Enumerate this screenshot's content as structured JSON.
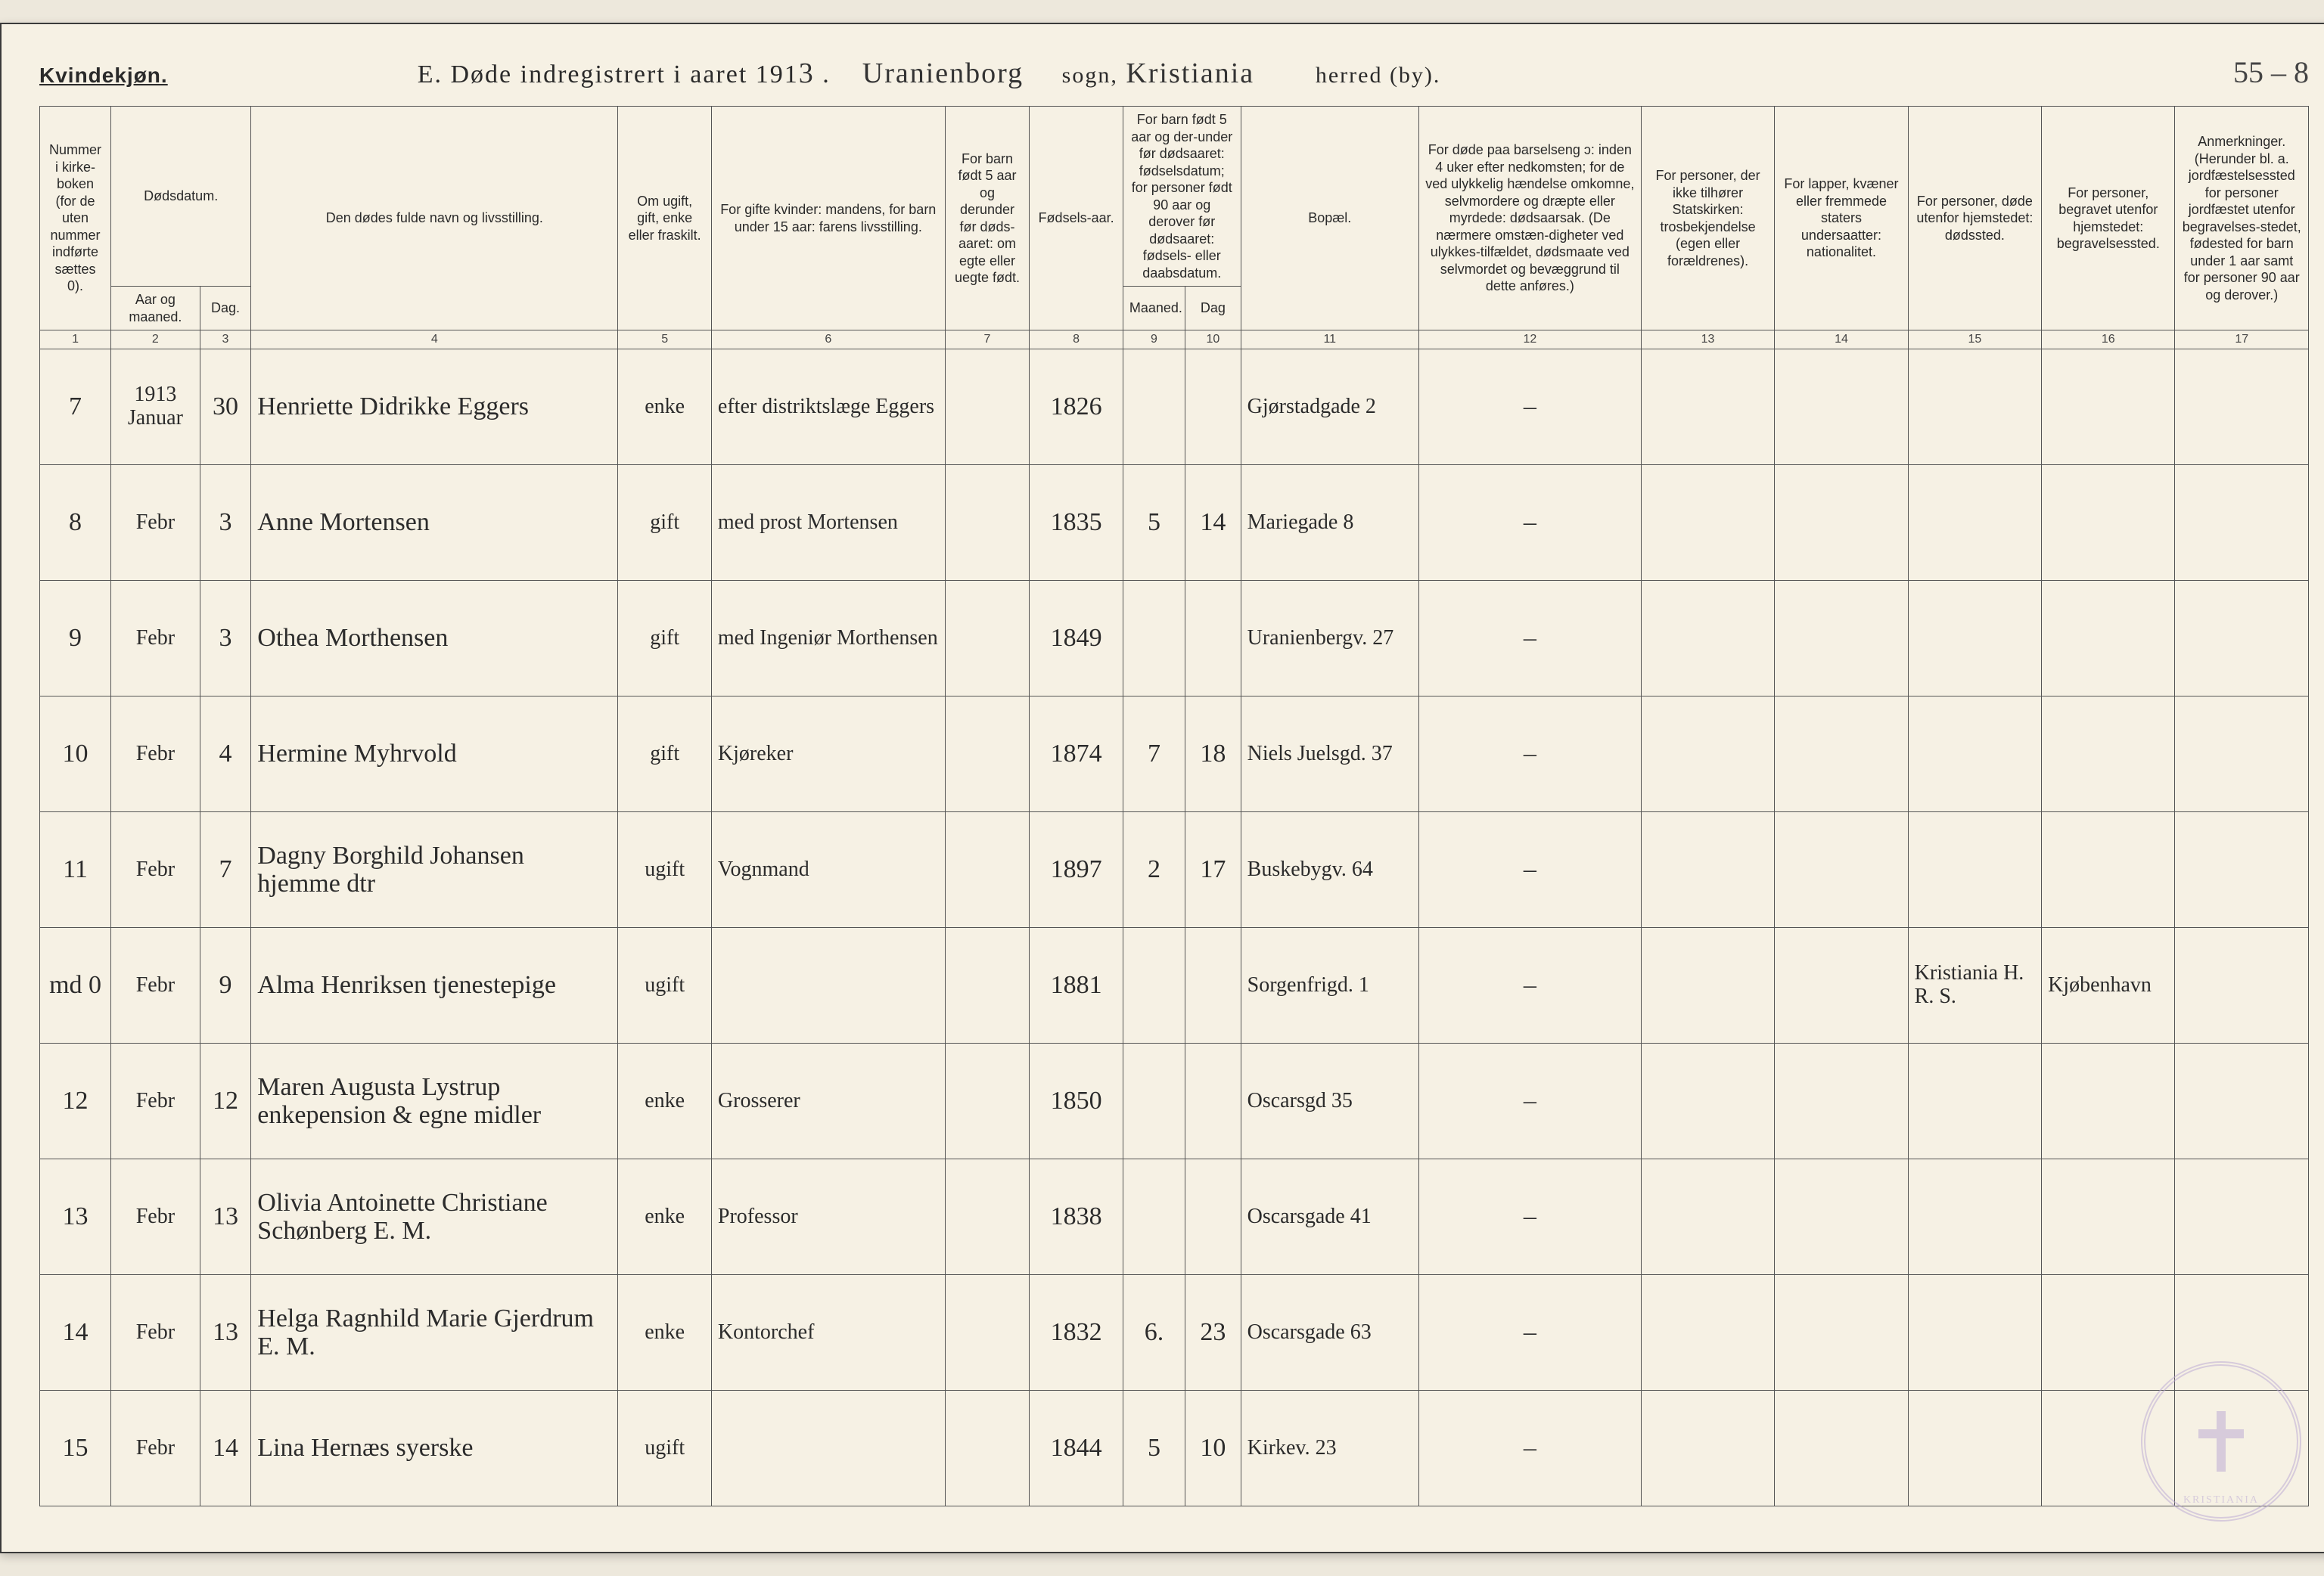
{
  "header": {
    "gender_label": "Kvindekjøn.",
    "title_prefix": "E.  Døde indregistrert i aaret 191",
    "year_suffix": "3",
    "sogn_script": "Uranienborg",
    "sogn_label": "sogn,",
    "herred_script": "Kristiania",
    "herred_label": "herred (by).",
    "page_number": "55 – 8"
  },
  "columns": {
    "c1": "Nummer i kirke-boken (for de uten nummer indførte sættes 0).",
    "c2a": "Dødsdatum.",
    "c2_aar": "Aar og maaned.",
    "c2_dag": "Dag.",
    "c4": "Den dødes fulde navn og livsstilling.",
    "c5": "Om ugift, gift, enke eller fraskilt.",
    "c6": "For gifte kvinder: mandens, for barn under 15 aar: farens livsstilling.",
    "c7": "For barn født 5 aar og derunder før døds-aaret: om egte eller uegte født.",
    "c8": "Fødsels-aar.",
    "c9_10": "For barn født 5 aar og der-under før dødsaaret: fødselsdatum; for personer født 90 aar og derover før dødsaaret: fødsels- eller daabsdatum.",
    "c9": "Maaned.",
    "c10": "Dag",
    "c11": "Bopæl.",
    "c12": "For døde paa barselseng ɔ: inden 4 uker efter nedkomsten; for de ved ulykkelig hændelse omkomne, selvmordere og dræpte eller myrdede: dødsaarsak. (De nærmere omstæn-digheter ved ulykkes-tilfældet, dødsmaate ved selvmordet og bevæggrund til dette anføres.)",
    "c13": "For personer, der ikke tilhører Statskirken: trosbekjendelse (egen eller forældrenes).",
    "c14": "For lapper, kvæner eller fremmede staters undersaatter: nationalitet.",
    "c15": "For personer, døde utenfor hjemstedet: dødssted.",
    "c16": "For personer, begravet utenfor hjemstedet: begravelsessted.",
    "c17": "Anmerkninger. (Herunder bl. a. jordfæstelsessted for personer jordfæstet utenfor begravelses-stedet, fødested for barn under 1 aar samt for personer 90 aar og derover.)"
  },
  "colnums": [
    "1",
    "2",
    "3",
    "4",
    "5",
    "6",
    "7",
    "8",
    "9",
    "10",
    "11",
    "12",
    "13",
    "14",
    "15",
    "16",
    "17"
  ],
  "rows": [
    {
      "num": "7",
      "aar": "1913 Januar",
      "dag": "30",
      "name": "Henriette Didrikke Eggers",
      "status": "enke",
      "col6": "efter distriktslæge Eggers",
      "col7": "",
      "year": "1826",
      "m": "",
      "d": "",
      "bopael": "Gjørstadgade 2",
      "c12": "–",
      "c13": "",
      "c14": "",
      "c15": "",
      "c16": "",
      "c17": ""
    },
    {
      "num": "8",
      "aar": "Febr",
      "dag": "3",
      "name": "Anne Mortensen",
      "status": "gift",
      "col6": "med prost Mortensen",
      "col7": "",
      "year": "1835",
      "m": "5",
      "d": "14",
      "bopael": "Mariegade 8",
      "c12": "–",
      "c13": "",
      "c14": "",
      "c15": "",
      "c16": "",
      "c17": ""
    },
    {
      "num": "9",
      "aar": "Febr",
      "dag": "3",
      "name": "Othea Morthensen",
      "status": "gift",
      "col6": "med Ingeniør Morthensen",
      "col7": "",
      "year": "1849",
      "m": "",
      "d": "",
      "bopael": "Uranienbergv. 27",
      "c12": "–",
      "c13": "",
      "c14": "",
      "c15": "",
      "c16": "",
      "c17": ""
    },
    {
      "num": "10",
      "aar": "Febr",
      "dag": "4",
      "name": "Hermine Myhrvold",
      "status": "gift",
      "col6": "Kjøreker",
      "col7": "",
      "year": "1874",
      "m": "7",
      "d": "18",
      "bopael": "Niels Juelsgd. 37",
      "c12": "–",
      "c13": "",
      "c14": "",
      "c15": "",
      "c16": "",
      "c17": ""
    },
    {
      "num": "11",
      "aar": "Febr",
      "dag": "7",
      "name": "Dagny Borghild Johansen  hjemme dtr",
      "status": "ugift",
      "col6": "Vognmand",
      "col7": "",
      "year": "1897",
      "m": "2",
      "d": "17",
      "bopael": "Buskebygv. 64",
      "c12": "–",
      "c13": "",
      "c14": "",
      "c15": "",
      "c16": "",
      "c17": ""
    },
    {
      "num": "md 0",
      "num_red": true,
      "aar": "Febr",
      "dag": "9",
      "name": "Alma Henriksen  tjenestepige",
      "status": "ugift",
      "col6": "",
      "col7": "",
      "year": "1881",
      "m": "",
      "d": "",
      "bopael": "Sorgenfrigd. 1",
      "c12": "–",
      "c13": "",
      "c14": "",
      "c15": "Kristiania H. R. S.",
      "c16": "Kjøbenhavn",
      "c17": ""
    },
    {
      "num": "12",
      "aar": "Febr",
      "dag": "12",
      "name": "Maren Augusta Lystrup  enkepension & egne midler",
      "status": "enke",
      "col6": "Grosserer",
      "col7": "",
      "year": "1850",
      "m": "",
      "d": "",
      "bopael": "Oscarsgd 35",
      "c12": "–",
      "c13": "",
      "c14": "",
      "c15": "",
      "c16": "",
      "c17": ""
    },
    {
      "num": "13",
      "aar": "Febr",
      "dag": "13",
      "name": "Olivia Antoinette Christiane Schønberg   E. M.",
      "status": "enke",
      "col6": "Professor",
      "col7": "",
      "year": "1838",
      "m": "",
      "d": "",
      "bopael": "Oscarsgade 41",
      "c12": "–",
      "c13": "",
      "c14": "",
      "c15": "",
      "c16": "",
      "c17": ""
    },
    {
      "num": "14",
      "aar": "Febr",
      "dag": "13",
      "name": "Helga Ragnhild Marie Gjerdrum   E. M.",
      "status": "enke",
      "col6": "Kontorchef",
      "col7": "",
      "year": "1832",
      "m": "6.",
      "d": "23",
      "bopael": "Oscarsgade 63",
      "c12": "–",
      "c13": "",
      "c14": "",
      "c15": "",
      "c16": "",
      "c17": ""
    },
    {
      "num": "15",
      "aar": "Febr",
      "dag": "14",
      "name": "Lina Hernæs  syerske",
      "status": "ugift",
      "col6": "",
      "col7": "",
      "year": "1844",
      "m": "5",
      "d": "10",
      "bopael": "Kirkev. 23",
      "c12": "–",
      "c13": "",
      "c14": "",
      "c15": "",
      "c16": "",
      "c17": ""
    }
  ],
  "stamp": {
    "text": "KRISTIANIA"
  },
  "colors": {
    "page_bg": "#f6f1e4",
    "ink": "#2a2a2a",
    "red_ink": "#b03030",
    "border": "#555555",
    "stamp": "#b9a7d4"
  },
  "col_widths_pct": [
    3.2,
    4.0,
    2.3,
    16.5,
    4.2,
    10.5,
    3.8,
    4.2,
    2.8,
    2.5,
    8.0,
    10.0,
    6.0,
    6.0,
    6.0,
    6.0,
    6.0
  ]
}
